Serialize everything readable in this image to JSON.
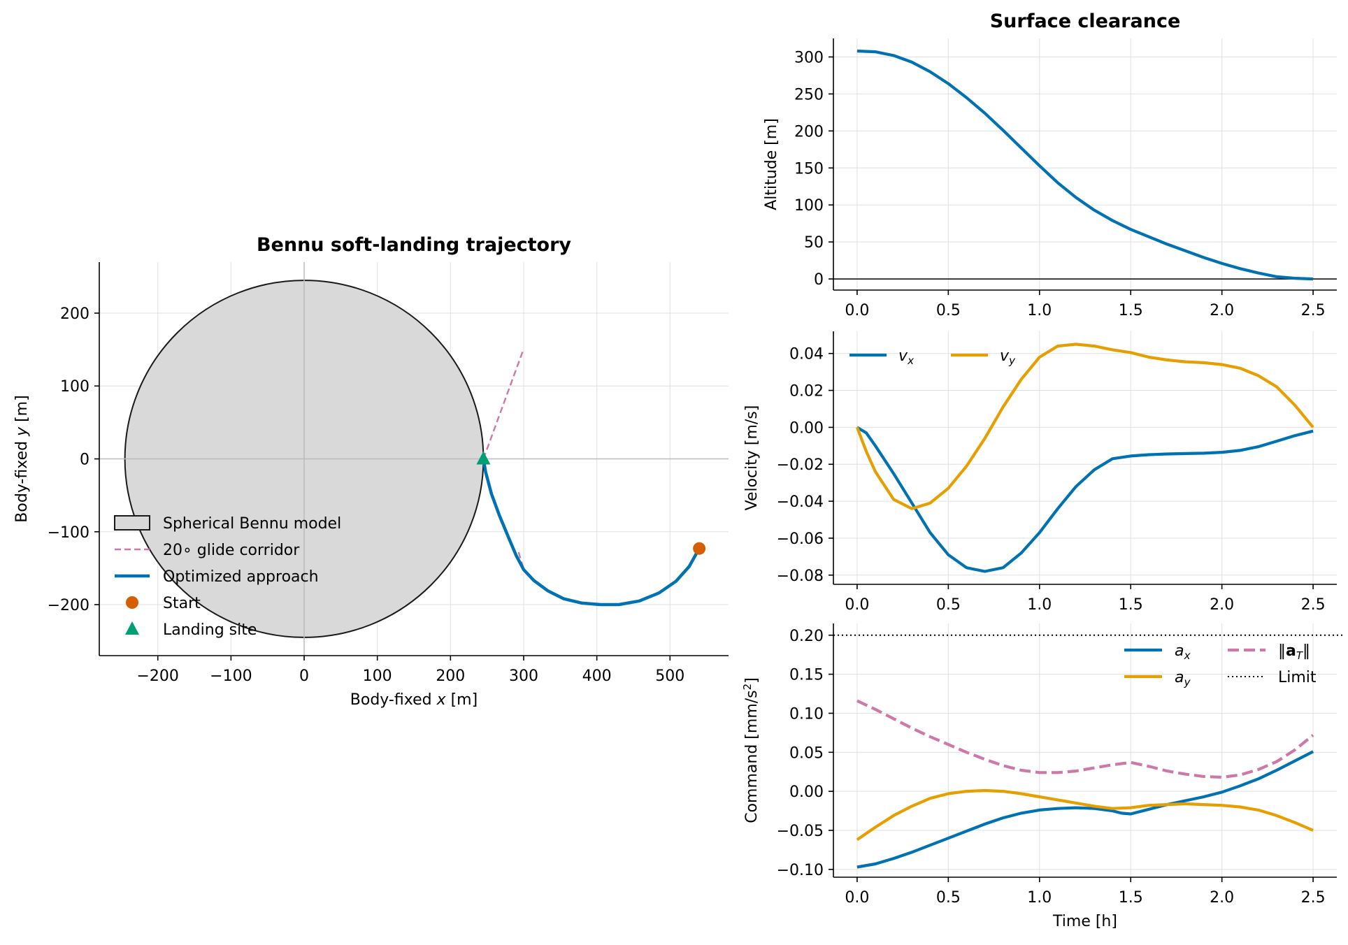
{
  "colors": {
    "blue": "#0072b2",
    "orange": "#e69f00",
    "vermillion": "#d55e00",
    "green": "#009e73",
    "pink": "#cc79a7",
    "body_fill": "#d9d9d9",
    "grid": "#e0e0e0"
  },
  "chart_data": [
    {
      "type": "line",
      "title": "Bennu soft-landing trajectory",
      "xlabel": "Body-fixed x [m]",
      "ylabel": "Body-fixed y [m]",
      "xlim": [
        -280,
        580
      ],
      "ylim": [
        -270,
        270
      ],
      "xticks": [
        -200,
        -100,
        0,
        100,
        200,
        300,
        400,
        500
      ],
      "xtick_labels": [
        "−200",
        "−100",
        "0",
        "100",
        "200",
        "300",
        "400",
        "500"
      ],
      "yticks": [
        -200,
        -100,
        0,
        100,
        200
      ],
      "ytick_labels": [
        "−200",
        "−100",
        "0",
        "100",
        "200"
      ],
      "grid": true,
      "bennu_radius": 245,
      "corridor": [
        [
          245,
          0
        ],
        [
          300,
          151
        ]
      ],
      "corridor_lower": [
        [
          293,
          -128
        ],
        [
          300,
          -151
        ]
      ],
      "trajectory": {
        "x": [
          540,
          526,
          508,
          485,
          458,
          430,
          405,
          380,
          355,
          333,
          314,
          300,
          290,
          279,
          267,
          256,
          248,
          245
        ],
        "y": [
          -123,
          -148,
          -168,
          -184,
          -195,
          -200,
          -200,
          -198,
          -192,
          -181,
          -167,
          -152,
          -133,
          -107,
          -78,
          -48,
          -18,
          0
        ]
      },
      "start": [
        540,
        -123
      ],
      "landing_site": [
        245,
        0
      ],
      "legend": {
        "position": "lower-left",
        "entries": [
          "Spherical Bennu model",
          "20$^\\circ$ glide corridor",
          "Optimized approach",
          "Start",
          "Landing site"
        ],
        "display": [
          "Spherical Bennu model",
          "20∘ glide corridor",
          "Optimized approach",
          "Start",
          "Landing site"
        ]
      }
    },
    {
      "type": "line",
      "title": "Surface clearance",
      "xlabel": "",
      "ylabel": "Altitude [m]",
      "xlim": [
        -0.13,
        2.63
      ],
      "ylim": [
        -15,
        325
      ],
      "xticks": [
        0.0,
        0.5,
        1.0,
        1.5,
        2.0,
        2.5
      ],
      "xtick_labels": [
        "0.0",
        "0.5",
        "1.0",
        "1.5",
        "2.0",
        "2.5"
      ],
      "yticks": [
        0,
        50,
        100,
        150,
        200,
        250,
        300
      ],
      "ytick_labels": [
        "0",
        "50",
        "100",
        "150",
        "200",
        "250",
        "300"
      ],
      "grid": true,
      "reference_line": 0,
      "series": [
        {
          "x": [
            0,
            0.1,
            0.2,
            0.3,
            0.4,
            0.5,
            0.6,
            0.7,
            0.8,
            0.9,
            1.0,
            1.1,
            1.2,
            1.3,
            1.4,
            1.5,
            1.6,
            1.7,
            1.8,
            1.9,
            2.0,
            2.1,
            2.2,
            2.3,
            2.4,
            2.5
          ],
          "values": [
            308,
            307,
            302,
            293,
            280,
            264,
            245,
            224,
            201,
            177,
            153,
            130,
            110,
            93,
            79,
            67,
            57,
            47,
            38,
            29,
            21,
            14,
            8,
            3,
            1,
            0
          ]
        }
      ]
    },
    {
      "type": "line",
      "title": "",
      "xlabel": "",
      "ylabel": "Velocity [m/s]",
      "xlim": [
        -0.13,
        2.63
      ],
      "ylim": [
        -0.085,
        0.052
      ],
      "xticks": [
        0.0,
        0.5,
        1.0,
        1.5,
        2.0,
        2.5
      ],
      "xtick_labels": [
        "0.0",
        "0.5",
        "1.0",
        "1.5",
        "2.0",
        "2.5"
      ],
      "yticks": [
        -0.08,
        -0.06,
        -0.04,
        -0.02,
        0.0,
        0.02,
        0.04
      ],
      "ytick_labels": [
        "−0.08",
        "−0.06",
        "−0.04",
        "−0.02",
        "0.00",
        "0.02",
        "0.04"
      ],
      "grid": true,
      "legend": {
        "position": "top-left",
        "columns": 2
      },
      "series": [
        {
          "name": "$v_x$",
          "x": [
            0,
            0.05,
            0.1,
            0.2,
            0.3,
            0.4,
            0.5,
            0.6,
            0.7,
            0.8,
            0.9,
            1.0,
            1.1,
            1.2,
            1.3,
            1.4,
            1.5,
            1.6,
            1.7,
            1.8,
            1.9,
            2.0,
            2.1,
            2.2,
            2.3,
            2.4,
            2.5
          ],
          "values": [
            0.0,
            -0.003,
            -0.01,
            -0.025,
            -0.041,
            -0.057,
            -0.069,
            -0.076,
            -0.078,
            -0.076,
            -0.068,
            -0.057,
            -0.044,
            -0.032,
            -0.023,
            -0.017,
            -0.0155,
            -0.0148,
            -0.0144,
            -0.0142,
            -0.014,
            -0.0135,
            -0.0125,
            -0.0105,
            -0.0075,
            -0.0045,
            -0.002
          ]
        },
        {
          "name": "$v_y$",
          "x": [
            0,
            0.05,
            0.1,
            0.2,
            0.3,
            0.4,
            0.5,
            0.6,
            0.7,
            0.8,
            0.9,
            1.0,
            1.1,
            1.2,
            1.3,
            1.4,
            1.5,
            1.6,
            1.7,
            1.8,
            1.9,
            2.0,
            2.1,
            2.2,
            2.3,
            2.4,
            2.5
          ],
          "values": [
            0.0,
            -0.013,
            -0.024,
            -0.039,
            -0.044,
            -0.041,
            -0.033,
            -0.021,
            -0.006,
            0.011,
            0.026,
            0.038,
            0.044,
            0.045,
            0.044,
            0.042,
            0.0405,
            0.038,
            0.0365,
            0.0355,
            0.035,
            0.034,
            0.032,
            0.028,
            0.022,
            0.012,
            0.0
          ]
        }
      ]
    },
    {
      "type": "line",
      "title": "",
      "xlabel": "Time [h]",
      "ylabel": "Command [mm/s²]",
      "xlim": [
        -0.13,
        2.63
      ],
      "ylim": [
        -0.11,
        0.215
      ],
      "xticks": [
        0.0,
        0.5,
        1.0,
        1.5,
        2.0,
        2.5
      ],
      "xtick_labels": [
        "0.0",
        "0.5",
        "1.0",
        "1.5",
        "2.0",
        "2.5"
      ],
      "yticks": [
        -0.1,
        -0.05,
        0.0,
        0.05,
        0.1,
        0.15,
        0.2
      ],
      "ytick_labels": [
        "−0.10",
        "−0.05",
        "0.00",
        "0.05",
        "0.10",
        "0.15",
        "0.20"
      ],
      "grid": true,
      "limit_line": 0.2,
      "legend": {
        "position": "top-right",
        "columns": 2,
        "entries": [
          "$a_x$",
          "$a_y$",
          "$\\|\\mathbf{a}_T\\|$",
          "Limit"
        ]
      },
      "series": [
        {
          "name": "$a_x$",
          "x": [
            0,
            0.1,
            0.2,
            0.3,
            0.4,
            0.5,
            0.6,
            0.7,
            0.8,
            0.9,
            1.0,
            1.1,
            1.2,
            1.3,
            1.4,
            1.45,
            1.5,
            1.6,
            1.7,
            1.8,
            1.9,
            2.0,
            2.1,
            2.2,
            2.3,
            2.4,
            2.5
          ],
          "values": [
            -0.097,
            -0.093,
            -0.086,
            -0.078,
            -0.069,
            -0.06,
            -0.051,
            -0.042,
            -0.034,
            -0.028,
            -0.024,
            -0.022,
            -0.021,
            -0.022,
            -0.025,
            -0.028,
            -0.029,
            -0.023,
            -0.017,
            -0.012,
            -0.007,
            -0.001,
            0.007,
            0.016,
            0.027,
            0.039,
            0.051
          ]
        },
        {
          "name": "$a_y$",
          "x": [
            0,
            0.1,
            0.2,
            0.3,
            0.4,
            0.5,
            0.6,
            0.7,
            0.8,
            0.9,
            1.0,
            1.1,
            1.2,
            1.3,
            1.4,
            1.5,
            1.6,
            1.7,
            1.8,
            1.9,
            2.0,
            2.1,
            2.2,
            2.3,
            2.4,
            2.5
          ],
          "values": [
            -0.062,
            -0.046,
            -0.031,
            -0.019,
            -0.009,
            -0.003,
            0.0,
            0.001,
            0.0,
            -0.003,
            -0.007,
            -0.011,
            -0.015,
            -0.019,
            -0.022,
            -0.021,
            -0.018,
            -0.017,
            -0.016,
            -0.017,
            -0.018,
            -0.02,
            -0.024,
            -0.031,
            -0.04,
            -0.05
          ]
        },
        {
          "name": "$\\|\\mathbf{a}_T\\|$",
          "x": [
            0,
            0.1,
            0.2,
            0.3,
            0.4,
            0.5,
            0.6,
            0.7,
            0.8,
            0.9,
            1.0,
            1.1,
            1.2,
            1.3,
            1.4,
            1.5,
            1.6,
            1.7,
            1.8,
            1.9,
            2.0,
            2.1,
            2.2,
            2.3,
            2.4,
            2.5
          ],
          "values": [
            0.116,
            0.105,
            0.093,
            0.081,
            0.07,
            0.06,
            0.05,
            0.041,
            0.033,
            0.027,
            0.024,
            0.024,
            0.026,
            0.03,
            0.034,
            0.037,
            0.032,
            0.026,
            0.022,
            0.019,
            0.018,
            0.021,
            0.028,
            0.038,
            0.053,
            0.072
          ]
        }
      ]
    }
  ]
}
